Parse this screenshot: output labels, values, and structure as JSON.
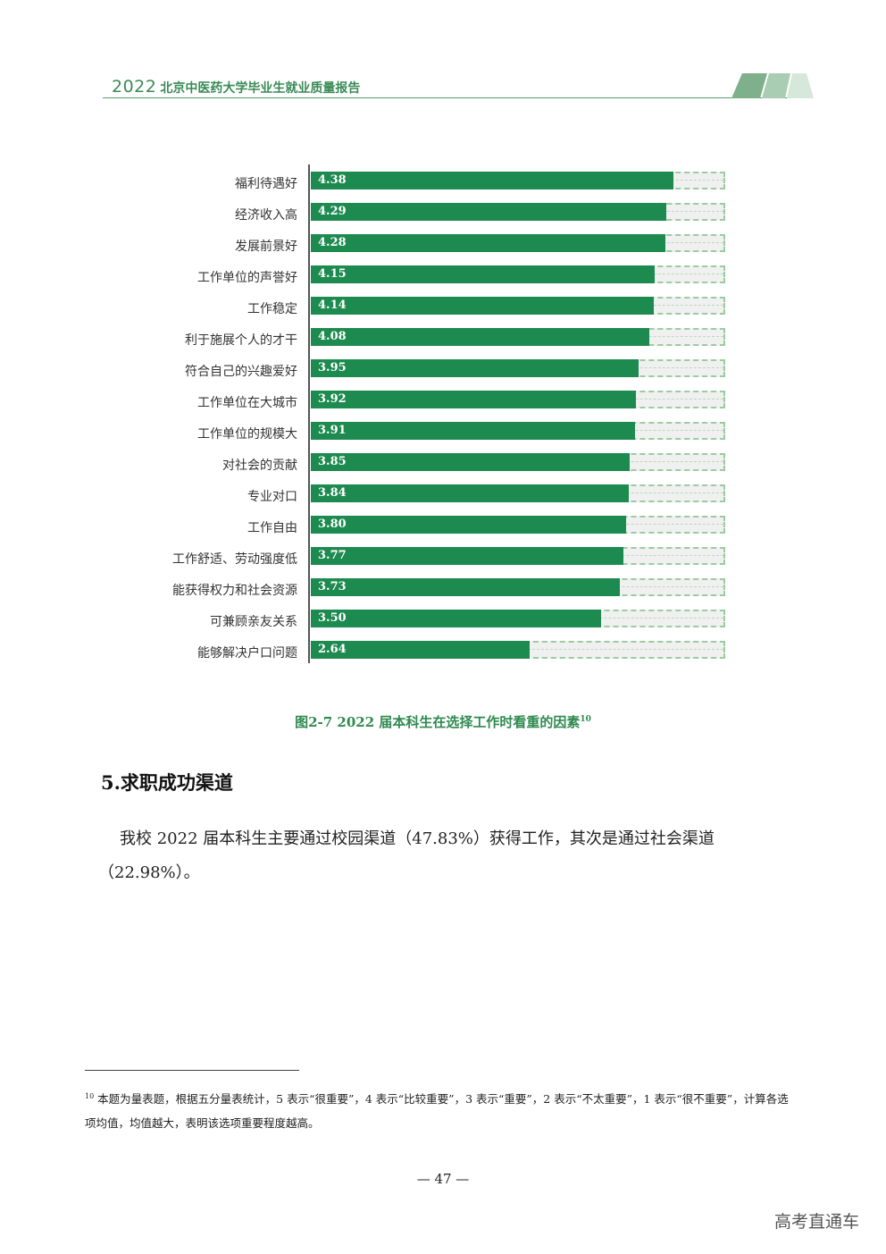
{
  "header": {
    "year": "2022",
    "title": "北京中医药大学毕业生就业质量报告"
  },
  "chart_data": {
    "type": "bar",
    "orientation": "horizontal",
    "title": "",
    "xlim": [
      0,
      5
    ],
    "categories": [
      "福利待遇好",
      "经济收入高",
      "发展前景好",
      "工作单位的声誉好",
      "工作稳定",
      "利于施展个人的才干",
      "符合自己的兴趣爱好",
      "工作单位在大城市",
      "工作单位的规模大",
      "对社会的贡献",
      "专业对口",
      "工作自由",
      "工作舒适、劳动强度低",
      "能获得权力和社会资源",
      "可兼顾亲友关系",
      "能够解决户口问题"
    ],
    "values": [
      4.38,
      4.29,
      4.28,
      4.15,
      4.14,
      4.08,
      3.95,
      3.92,
      3.91,
      3.85,
      3.84,
      3.8,
      3.77,
      3.73,
      3.5,
      2.64
    ],
    "value_labels": [
      "4.38",
      "4.29",
      "4.28",
      "4.15",
      "4.14",
      "4.08",
      "3.95",
      "3.92",
      "3.91",
      "3.85",
      "3.84",
      "3.80",
      "3.77",
      "3.73",
      "3.50",
      "2.64"
    ],
    "colors": {
      "bar": "#1d8a4f",
      "track": "#f0f0f0",
      "track_border": "#9bcc9f"
    }
  },
  "caption": {
    "text": "图2-7  2022 届本科生在选择工作时看重的因素",
    "footnote_ref": "10"
  },
  "section": {
    "heading": "5.求职成功渠道",
    "paragraph": "我校 2022 届本科生主要通过校园渠道（47.83%）获得工作，其次是通过社会渠道（22.98%）。"
  },
  "footnote": {
    "number": "10",
    "text": " 本题为量表题，根据五分量表统计，5 表示“很重要”，4 表示“比较重要”，3 表示“重要”，2 表示“不太重要”，1 表示“很不重要”，计算各选项均值，均值越大，表明该选项重要程度越高。"
  },
  "page_number": "— 47 —",
  "watermark": "高考直通车"
}
